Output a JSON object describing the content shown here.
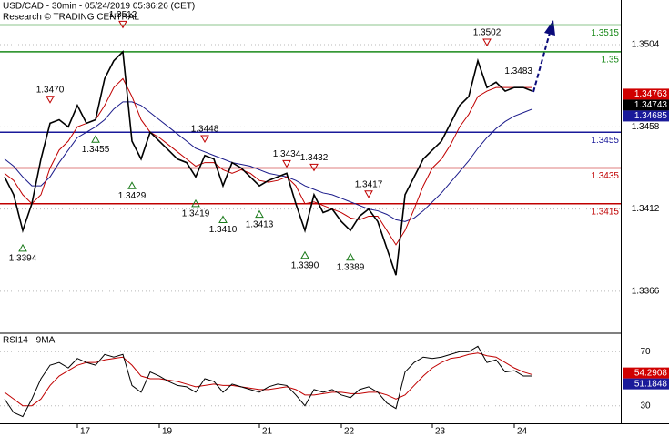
{
  "chart_data": [
    {
      "type": "line",
      "title": "USD/CAD - 30min - 05/24/2019 05:36:26 (CET)",
      "subtitle": "Research © TRADING CENTRAL",
      "categories": [
        null,
        null,
        null,
        null,
        null,
        null,
        null,
        null,
        "17",
        null,
        null,
        null,
        null,
        null,
        null,
        null,
        null,
        "19",
        null,
        null,
        null,
        null,
        null,
        null,
        null,
        null,
        null,
        null,
        "21",
        null,
        null,
        null,
        null,
        null,
        null,
        null,
        null,
        "22",
        null,
        null,
        null,
        null,
        null,
        null,
        null,
        null,
        null,
        "23",
        null,
        null,
        null,
        null,
        null,
        null,
        null,
        null,
        "24",
        null,
        null
      ],
      "series": [
        {
          "color": "#000000",
          "values": [
            1.343,
            1.342,
            1.34,
            1.3415,
            1.344,
            1.346,
            1.3462,
            1.3458,
            1.347,
            1.346,
            1.3462,
            1.3485,
            1.3495,
            1.35,
            1.345,
            1.344,
            1.3455,
            1.345,
            1.3445,
            1.344,
            1.3438,
            1.343,
            1.3442,
            1.344,
            1.3425,
            1.3438,
            1.3435,
            1.343,
            1.3425,
            1.3428,
            1.343,
            1.3432,
            1.3415,
            1.34,
            1.342,
            1.341,
            1.3412,
            1.3405,
            1.34,
            1.3408,
            1.3412,
            1.3405,
            1.339,
            1.3375,
            1.342,
            1.343,
            1.344,
            1.3445,
            1.345,
            1.346,
            1.347,
            1.3475,
            1.3495,
            1.348,
            1.3483,
            1.3478,
            1.348,
            1.348,
            1.3478
          ]
        },
        {
          "color": "#c00000",
          "values": [
            1.3432,
            1.3428,
            1.342,
            1.3415,
            1.342,
            1.3435,
            1.3445,
            1.345,
            1.3458,
            1.346,
            1.3462,
            1.347,
            1.348,
            1.3485,
            1.3475,
            1.3462,
            1.3455,
            1.3452,
            1.3448,
            1.3444,
            1.344,
            1.3436,
            1.3438,
            1.3438,
            1.3434,
            1.3432,
            1.3434,
            1.3432,
            1.3428,
            1.3427,
            1.3428,
            1.343,
            1.3425,
            1.3415,
            1.3416,
            1.3414,
            1.3412,
            1.341,
            1.3407,
            1.3406,
            1.3408,
            1.3408,
            1.34,
            1.3392,
            1.34,
            1.3412,
            1.3425,
            1.3435,
            1.344,
            1.3448,
            1.3458,
            1.3465,
            1.3475,
            1.3478,
            1.348,
            1.348,
            1.348,
            1.348,
            1.348
          ]
        },
        {
          "color": "#1a1a8a",
          "values": [
            1.344,
            1.3436,
            1.343,
            1.3425,
            1.3425,
            1.343,
            1.3438,
            1.3445,
            1.3452,
            1.3455,
            1.3458,
            1.3462,
            1.3468,
            1.3472,
            1.3472,
            1.347,
            1.3466,
            1.3462,
            1.3458,
            1.3454,
            1.345,
            1.3446,
            1.3444,
            1.3442,
            1.344,
            1.3438,
            1.3437,
            1.3436,
            1.3434,
            1.3432,
            1.3431,
            1.343,
            1.3428,
            1.3425,
            1.3423,
            1.3421,
            1.342,
            1.3418,
            1.3416,
            1.3414,
            1.3412,
            1.3411,
            1.3409,
            1.3406,
            1.3405,
            1.3407,
            1.3411,
            1.3416,
            1.3421,
            1.3427,
            1.3433,
            1.3439,
            1.3446,
            1.3452,
            1.3457,
            1.3461,
            1.3464,
            1.3466,
            1.3468
          ]
        }
      ],
      "ylim": [
        1.3343,
        1.3529
      ],
      "yticks": [
        1.3504,
        1.3458,
        1.3412,
        1.3366
      ],
      "grid": true,
      "levels": [
        {
          "value": 1.3515,
          "color": "#1a8a1a"
        },
        {
          "value": 1.35,
          "color": "#1a8a1a"
        },
        {
          "value": 1.3455,
          "color": "#1a1a9a"
        },
        {
          "value": 1.3435,
          "color": "#c00000"
        },
        {
          "value": 1.3415,
          "color": "#c00000"
        }
      ],
      "price_tags": [
        {
          "value": 1.34763,
          "color": "#d00000"
        },
        {
          "value": 1.34743,
          "color": "#000000"
        },
        {
          "value": 1.34685,
          "color": "#1a1a9a"
        }
      ],
      "annotations": [
        {
          "value": 1.3394,
          "label": "1.3394",
          "kind": "low",
          "at": 2
        },
        {
          "value": 1.347,
          "label": "1.3470",
          "kind": "high",
          "at": 5
        },
        {
          "value": 1.3455,
          "label": "1.3455",
          "kind": "low",
          "at": 10
        },
        {
          "value": 1.3512,
          "label": "1.3512",
          "kind": "high",
          "at": 13
        },
        {
          "value": 1.3429,
          "label": "1.3429",
          "kind": "low",
          "at": 14
        },
        {
          "value": 1.3419,
          "label": "1.3419",
          "kind": "low",
          "at": 21
        },
        {
          "value": 1.3448,
          "label": "1.3448",
          "kind": "high",
          "at": 22
        },
        {
          "value": 1.341,
          "label": "1.3410",
          "kind": "low",
          "at": 24
        },
        {
          "value": 1.3413,
          "label": "1.3413",
          "kind": "low",
          "at": 28
        },
        {
          "value": 1.3434,
          "label": "1.3434",
          "kind": "high",
          "at": 31
        },
        {
          "value": 1.339,
          "label": "1.3390",
          "kind": "low",
          "at": 33
        },
        {
          "value": 1.3432,
          "label": "1.3432",
          "kind": "high",
          "at": 34
        },
        {
          "value": 1.3389,
          "label": "1.3389",
          "kind": "low",
          "at": 38
        },
        {
          "value": 1.3417,
          "label": "1.3417",
          "kind": "high",
          "at": 40
        },
        {
          "value": 1.3502,
          "label": "1.3502",
          "kind": "high",
          "at": 53
        },
        {
          "value": 1.3483,
          "label": "1.3483",
          "kind": "label",
          "at": 58
        }
      ]
    },
    {
      "type": "line",
      "title": "RSI14 - 9MA",
      "series": [
        {
          "color": "#000000",
          "values": [
            35,
            25,
            22,
            35,
            50,
            60,
            62,
            58,
            65,
            62,
            60,
            68,
            66,
            68,
            45,
            40,
            55,
            52,
            48,
            45,
            44,
            40,
            50,
            48,
            40,
            46,
            44,
            42,
            40,
            44,
            46,
            45,
            38,
            30,
            42,
            40,
            42,
            38,
            36,
            42,
            44,
            40,
            32,
            28,
            55,
            62,
            66,
            65,
            66,
            68,
            70,
            70,
            74,
            62,
            64,
            55,
            56,
            52,
            52
          ]
        },
        {
          "color": "#c00000",
          "values": [
            40,
            35,
            30,
            30,
            35,
            45,
            52,
            56,
            60,
            62,
            62,
            64,
            65,
            66,
            60,
            52,
            50,
            50,
            49,
            48,
            46,
            44,
            45,
            46,
            45,
            45,
            44,
            43,
            42,
            42,
            43,
            44,
            42,
            38,
            38,
            39,
            40,
            40,
            39,
            39,
            40,
            40,
            38,
            35,
            38,
            45,
            52,
            58,
            62,
            65,
            66,
            68,
            69,
            67,
            66,
            62,
            58,
            55,
            53
          ]
        }
      ],
      "ylim": [
        17,
        83
      ],
      "yticks": [
        70,
        30
      ],
      "grid": true,
      "price_tags": [
        {
          "value": 54.2908,
          "color": "#d00000"
        },
        {
          "value": 51.1848,
          "color": "#1a1a9a"
        }
      ]
    }
  ]
}
